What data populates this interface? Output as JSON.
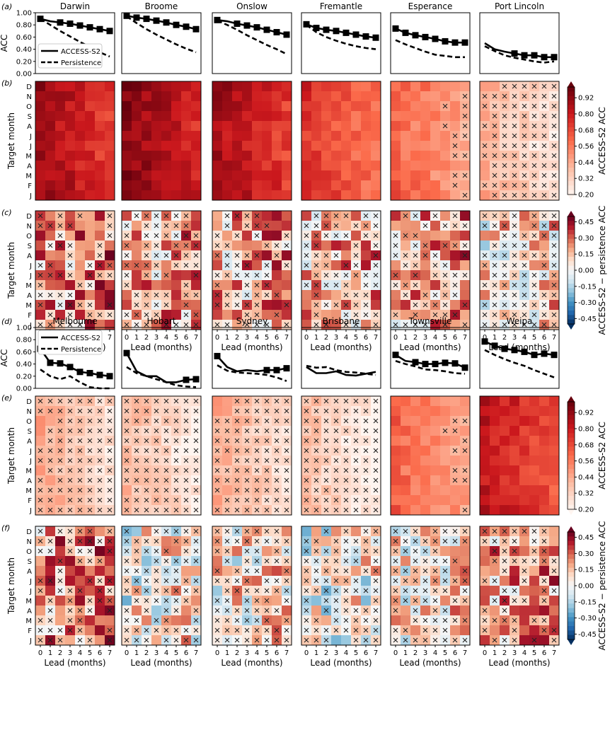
{
  "figure": {
    "lead_label": "Lead (months)",
    "month_label": "Target month",
    "acc_label": "ACC",
    "rows": [
      "D",
      "N",
      "O",
      "S",
      "A",
      "J",
      "J",
      "M",
      "A",
      "M",
      "F",
      "J"
    ],
    "leads": [
      "0",
      "1",
      "2",
      "3",
      "4",
      "5",
      "6",
      "7"
    ],
    "acc_ticks": [
      "0.00",
      "0.20",
      "0.40",
      "0.60",
      "0.80",
      "1.00"
    ],
    "cb_acc": {
      "label": "ACCESS-S2 ACC",
      "ticks": [
        "0.92",
        "0.80",
        "0.68",
        "0.56",
        "0.44",
        "0.32",
        "0.20"
      ],
      "range": [
        0.2,
        1.0
      ]
    },
    "cb_diff": {
      "label": "ACCESS-S2 − persistence ACC",
      "ticks": [
        "0.45",
        "0.30",
        "0.15",
        "0.00",
        "-0.15",
        "-0.30",
        "-0.45"
      ],
      "range": [
        -0.5,
        0.5
      ]
    },
    "legend": {
      "model": "ACCESS-S2",
      "persistence": "Persistence"
    },
    "colors": {
      "model": "#000000",
      "persistence": "#000000",
      "cross": "#222222"
    }
  },
  "chart_data": [
    {
      "type": "line+heatmap",
      "panel_labels": [
        "(a)",
        "(b)",
        "(c)"
      ],
      "ylim": [
        0,
        1
      ],
      "stations": [
        {
          "name": "Darwin",
          "model": [
            0.9,
            0.86,
            0.84,
            0.82,
            0.79,
            0.76,
            0.73,
            0.7
          ],
          "persistence": [
            0.9,
            0.8,
            0.7,
            0.61,
            0.52,
            0.44,
            0.35,
            0.28
          ],
          "heat_base": 0.87,
          "diff_base": 0.18,
          "seed": 11
        },
        {
          "name": "Broome",
          "model": [
            0.95,
            0.92,
            0.9,
            0.87,
            0.84,
            0.8,
            0.77,
            0.73
          ],
          "persistence": [
            0.94,
            0.83,
            0.73,
            0.64,
            0.56,
            0.48,
            0.41,
            0.35
          ],
          "heat_base": 0.92,
          "diff_base": 0.14,
          "seed": 23
        },
        {
          "name": "Onslow",
          "model": [
            0.88,
            0.86,
            0.82,
            0.79,
            0.76,
            0.72,
            0.68,
            0.64
          ],
          "persistence": [
            0.87,
            0.8,
            0.72,
            0.63,
            0.55,
            0.47,
            0.4,
            0.32
          ],
          "heat_base": 0.86,
          "diff_base": 0.14,
          "seed": 37
        },
        {
          "name": "Fremantle",
          "model": [
            0.81,
            0.75,
            0.72,
            0.7,
            0.67,
            0.64,
            0.61,
            0.59
          ],
          "persistence": [
            0.8,
            0.68,
            0.6,
            0.54,
            0.49,
            0.45,
            0.42,
            0.4
          ],
          "heat_base": 0.72,
          "diff_base": 0.12,
          "seed": 41
        },
        {
          "name": "Esperance",
          "model": [
            0.74,
            0.67,
            0.63,
            0.6,
            0.57,
            0.53,
            0.51,
            0.51
          ],
          "persistence": [
            0.55,
            0.48,
            0.42,
            0.36,
            0.31,
            0.29,
            0.27,
            0.27
          ],
          "heat_base": 0.6,
          "diff_base": 0.14,
          "seed": 53
        },
        {
          "name": "Port Lincoln",
          "model": [
            0.5,
            0.4,
            0.36,
            0.33,
            0.3,
            0.3,
            0.27,
            0.27
          ],
          "persistence": [
            0.45,
            0.37,
            0.3,
            0.26,
            0.23,
            0.2,
            0.18,
            0.2
          ],
          "heat_base": 0.4,
          "diff_base": 0.04,
          "seed": 67
        }
      ]
    },
    {
      "type": "line+heatmap",
      "panel_labels": [
        "(d)",
        "(e)",
        "(f)"
      ],
      "ylim": [
        0,
        1
      ],
      "stations": [
        {
          "name": "Melbourne",
          "model": [
            0.65,
            0.42,
            0.41,
            0.35,
            0.27,
            0.25,
            0.22,
            0.2
          ],
          "persistence": [
            0.31,
            0.2,
            0.15,
            0.2,
            0.1,
            0.02,
            0.0,
            -0.02
          ],
          "heat_base": 0.42,
          "diff_base": 0.2,
          "seed": 71
        },
        {
          "name": "Hobart",
          "model": [
            0.58,
            0.28,
            0.2,
            0.2,
            0.1,
            0.1,
            0.14,
            0.15
          ],
          "persistence": [
            0.35,
            0.25,
            0.2,
            0.15,
            0.1,
            0.05,
            0.03,
            0.02
          ],
          "heat_base": 0.38,
          "diff_base": 0.0,
          "seed": 83
        },
        {
          "name": "Sydney",
          "model": [
            0.53,
            0.35,
            0.28,
            0.3,
            0.28,
            0.3,
            0.3,
            0.33
          ],
          "persistence": [
            0.38,
            0.29,
            0.26,
            0.25,
            0.24,
            0.22,
            0.18,
            0.12
          ],
          "heat_base": 0.42,
          "diff_base": 0.03,
          "seed": 97
        },
        {
          "name": "Brisbane",
          "model": [
            0.35,
            0.25,
            0.25,
            0.28,
            0.22,
            0.21,
            0.24,
            0.27
          ],
          "persistence": [
            0.37,
            0.34,
            0.35,
            0.3,
            0.27,
            0.26,
            0.24,
            0.22
          ],
          "heat_base": 0.35,
          "diff_base": -0.04,
          "seed": 101
        },
        {
          "name": "Townsville",
          "model": [
            0.55,
            0.45,
            0.43,
            0.4,
            0.4,
            0.42,
            0.41,
            0.34
          ],
          "persistence": [
            0.45,
            0.4,
            0.36,
            0.31,
            0.3,
            0.28,
            0.25,
            0.24
          ],
          "heat_base": 0.6,
          "diff_base": 0.04,
          "seed": 113
        },
        {
          "name": "Weipa",
          "model": [
            0.77,
            0.7,
            0.65,
            0.63,
            0.6,
            0.55,
            0.57,
            0.55
          ],
          "persistence": [
            0.63,
            0.55,
            0.48,
            0.42,
            0.37,
            0.3,
            0.24,
            0.18
          ],
          "heat_base": 0.8,
          "diff_base": 0.16,
          "seed": 127
        }
      ]
    }
  ]
}
